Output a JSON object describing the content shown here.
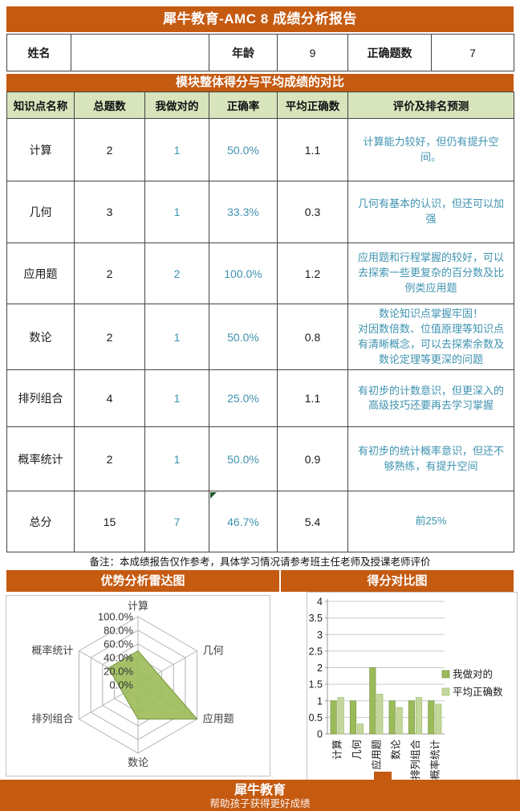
{
  "report": {
    "title": "犀牛教育-AMC 8 成绩分析报告",
    "info": {
      "name_label": "姓名",
      "name_value": "",
      "age_label": "年龄",
      "age_value": "9",
      "correct_label": "正确题数",
      "correct_value": "7"
    },
    "section_title": "模块整体得分与平均成绩的对比",
    "table": {
      "headers": [
        "知识点名称",
        "总题数",
        "我做对的",
        "正确率",
        "平均正确数",
        "评价及排名预测"
      ],
      "rows": [
        {
          "name": "计算",
          "total": "2",
          "correct": "1",
          "rate": "50.0%",
          "avg": "1.1",
          "comment": "计算能力较好，但仍有提升空间。"
        },
        {
          "name": "几何",
          "total": "3",
          "correct": "1",
          "rate": "33.3%",
          "avg": "0.3",
          "comment": "几何有基本的认识，但还可以加强"
        },
        {
          "name": "应用题",
          "total": "2",
          "correct": "2",
          "rate": "100.0%",
          "avg": "1.2",
          "comment": "应用题和行程掌握的较好，可以去探索一些更复杂的百分数及比例类应用题"
        },
        {
          "name": "数论",
          "total": "2",
          "correct": "1",
          "rate": "50.0%",
          "avg": "0.8",
          "comment": "数论知识点掌握牢固！\n对因数倍数、位值原理等知识点有清晰概念，可以去探索余数及数论定理等更深的问题"
        },
        {
          "name": "排列组合",
          "total": "4",
          "correct": "1",
          "rate": "25.0%",
          "avg": "1.1",
          "comment": "有初步的计数意识，但更深入的高级技巧还要再去学习掌握"
        },
        {
          "name": "概率统计",
          "total": "2",
          "correct": "1",
          "rate": "50.0%",
          "avg": "0.9",
          "comment": "有初步的统计概率意识，但还不够熟练，有提升空间"
        },
        {
          "name": "总分",
          "total": "15",
          "correct": "7",
          "rate": "46.7%",
          "avg": "5.4",
          "comment": "前25%"
        }
      ],
      "note": "备注：本成绩报告仅作参考，具体学习情况请参考班主任老师及授课老师评价"
    },
    "footer": {
      "brand": "犀牛教育",
      "slogan": "帮助孩子获得更好成绩"
    }
  },
  "colors": {
    "accent_orange": "#c55a11",
    "table_header_green": "#d7e4bc",
    "teal_text": "#3f93b0",
    "series1_green": "#9bbb59",
    "series2_green": "#c3d69b"
  },
  "chart_data": [
    {
      "type": "radar",
      "title": "优势分析雷达图",
      "categories": [
        "计算",
        "几何",
        "应用题",
        "数论",
        "排列组合",
        "概率统计"
      ],
      "values": [
        50.0,
        33.3,
        100.0,
        50.0,
        25.0,
        50.0
      ],
      "max": 100,
      "ring_labels": [
        "0.0%",
        "20.0%",
        "40.0%",
        "60.0%",
        "80.0%",
        "100.0%"
      ],
      "fill": "#9bbb59",
      "stroke": "#78933f",
      "grid": true
    },
    {
      "type": "bar",
      "title": "得分对比图",
      "categories": [
        "计算",
        "几何",
        "应用题",
        "数论",
        "排列组合",
        "概率统计"
      ],
      "series": [
        {
          "name": "我做对的",
          "color": "#9bbb59",
          "edge": "#7e9a44",
          "values": [
            1,
            1,
            2,
            1,
            1,
            1
          ]
        },
        {
          "name": "平均正确数",
          "color": "#c3d69b",
          "edge": "#a9c077",
          "values": [
            1.1,
            0.3,
            1.2,
            0.8,
            1.1,
            0.9
          ]
        }
      ],
      "ylim": [
        0,
        4
      ],
      "ytick_step": 0.5,
      "grid": true,
      "legend_position": "right"
    }
  ]
}
